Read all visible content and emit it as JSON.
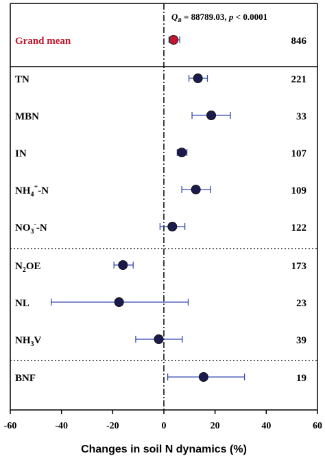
{
  "chart_data": {
    "type": "forest",
    "xlabel": "Changes in soil N dynamics (%)",
    "xlim": [
      -60,
      60
    ],
    "xticks": [
      -60,
      -40,
      -20,
      0,
      20,
      40,
      60
    ],
    "annotation": {
      "q_symbol": "Q",
      "q_subscript": "B",
      "q_value": " = 88789.03, ",
      "p_symbol": "p",
      "p_text": " < 0.0001"
    },
    "grand_mean": {
      "label": "Grand mean",
      "mean": 3.8,
      "lower": 2.0,
      "upper": 6.2,
      "n": "846",
      "color": "#c0162b"
    },
    "rows": [
      {
        "label": "TN",
        "mean": 13.3,
        "lower": 9.8,
        "upper": 17.0,
        "n": "221",
        "group": 1
      },
      {
        "label": "MBN",
        "mean": 18.5,
        "lower": 11.0,
        "upper": 26.0,
        "n": "33",
        "group": 1
      },
      {
        "label": "IN",
        "mean": 7.0,
        "lower": 5.2,
        "upper": 9.0,
        "n": "107",
        "group": 1
      },
      {
        "label": "NH4+-N",
        "mean": 12.5,
        "lower": 7.0,
        "upper": 18.3,
        "n": "109",
        "group": 1
      },
      {
        "label": "NO3--N",
        "mean": 3.3,
        "lower": -1.5,
        "upper": 8.2,
        "n": "122",
        "group": 1
      },
      {
        "label": "N2OE",
        "mean": -16.0,
        "lower": -19.5,
        "upper": -12.0,
        "n": "173",
        "group": 2
      },
      {
        "label": "NL",
        "mean": -17.5,
        "lower": -44.0,
        "upper": 9.5,
        "n": "23",
        "group": 2
      },
      {
        "label": "NH3V",
        "mean": -2.0,
        "lower": -11.0,
        "upper": 7.2,
        "n": "39",
        "group": 2
      },
      {
        "label": "BNF",
        "mean": 15.5,
        "lower": 1.5,
        "upper": 31.5,
        "n": "19",
        "group": 3
      }
    ],
    "colors": {
      "point": "#1c1b4d",
      "errorbar": "#3347b0",
      "grand_point": "#c0162b"
    },
    "grid": false
  }
}
